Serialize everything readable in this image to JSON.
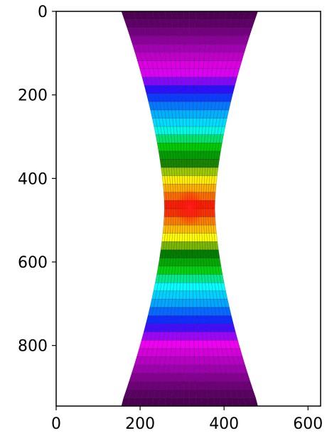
{
  "chart_data": {
    "type": "heatmap",
    "title": "",
    "xlabel": "",
    "ylabel": "",
    "xlim": [
      0,
      630
    ],
    "ylim": [
      945,
      0
    ],
    "y_inverted": true,
    "grid": false,
    "x_ticks": [
      {
        "value": 0,
        "label": "0"
      },
      {
        "value": 200,
        "label": "200"
      },
      {
        "value": 400,
        "label": "400"
      },
      {
        "value": 600,
        "label": "600"
      }
    ],
    "y_ticks": [
      {
        "value": 0,
        "label": "0"
      },
      {
        "value": 200,
        "label": "200"
      },
      {
        "value": 400,
        "label": "400"
      },
      {
        "value": 600,
        "label": "600"
      },
      {
        "value": 800,
        "label": "800"
      }
    ],
    "mesh": {
      "center_x": 318,
      "neck_y": 470,
      "top_y": 0,
      "bottom_y": 945,
      "top_left_x": 155,
      "top_right_x": 480,
      "neck_left_x": 258,
      "neck_right_x": 378,
      "rows": 48,
      "columns": 22
    },
    "colormap": [
      "#4a0050",
      "#a000b0",
      "#f000f0",
      "#1010ff",
      "#00a0ff",
      "#00ffff",
      "#00d000",
      "#007a00",
      "#ffff00",
      "#ff8c00",
      "#ff0000"
    ],
    "hotspot_color": "#ff0000"
  }
}
